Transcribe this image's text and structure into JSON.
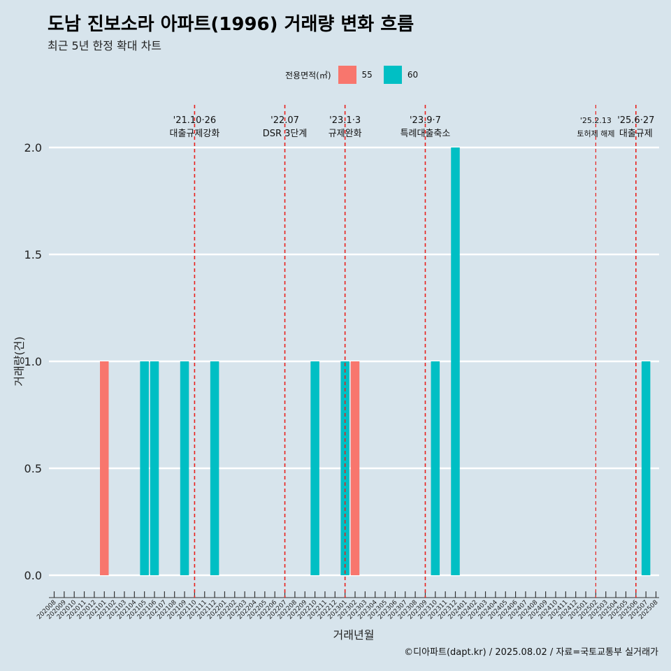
{
  "title": "도남 진보소라 아파트(1996) 거래량 변화 흐름",
  "subtitle": "최근 5년 한정 확대 차트",
  "legend": {
    "title": "전용면적(㎡)",
    "items": [
      {
        "label": "55",
        "color": "#f8766d"
      },
      {
        "label": "60",
        "color": "#00bfc4"
      }
    ]
  },
  "footer": "©디아파트(dapt.kr) / 2025.08.02 / 자료=국토교통부 실거래가",
  "chart_data": {
    "type": "bar",
    "xlabel": "거래년월",
    "ylabel": "거래량(건)",
    "ylim": [
      0,
      2.0
    ],
    "yticks": [
      "0.0",
      "0.5",
      "1.0",
      "1.5",
      "2.0"
    ],
    "categories": [
      "202008",
      "202009",
      "202010",
      "202011",
      "202012",
      "202101",
      "202102",
      "202103",
      "202104",
      "202105",
      "202106",
      "202107",
      "202108",
      "202109",
      "202110",
      "202111",
      "202112",
      "202201",
      "202202",
      "202203",
      "202204",
      "202205",
      "202206",
      "202207",
      "202208",
      "202209",
      "202210",
      "202211",
      "202212",
      "202301",
      "202302",
      "202303",
      "202304",
      "202305",
      "202306",
      "202307",
      "202308",
      "202309",
      "202310",
      "202311",
      "202312",
      "202401",
      "202402",
      "202403",
      "202404",
      "202405",
      "202406",
      "202407",
      "202408",
      "202409",
      "202410",
      "202411",
      "202412",
      "202501",
      "202502",
      "202503",
      "202504",
      "202505",
      "202506",
      "202507",
      "202508"
    ],
    "series": [
      {
        "name": "55",
        "color": "#f8766d",
        "points": [
          {
            "x": "202101",
            "y": 1
          },
          {
            "x": "202302",
            "y": 1
          }
        ]
      },
      {
        "name": "60",
        "color": "#00bfc4",
        "points": [
          {
            "x": "202105",
            "y": 1
          },
          {
            "x": "202106",
            "y": 1
          },
          {
            "x": "202109",
            "y": 1
          },
          {
            "x": "202112",
            "y": 1
          },
          {
            "x": "202210",
            "y": 1
          },
          {
            "x": "202301",
            "y": 1
          },
          {
            "x": "202310",
            "y": 1
          },
          {
            "x": "202312",
            "y": 2
          },
          {
            "x": "202507",
            "y": 1
          }
        ]
      }
    ],
    "annotations": [
      {
        "x": "202110",
        "date": "'21.10·26",
        "label": "대출규제강화",
        "small": false
      },
      {
        "x": "202207",
        "date": "'22.07",
        "label": "DSR 3단계",
        "small": false
      },
      {
        "x": "202301",
        "date": "'23.1·3",
        "label": "규제완화",
        "small": false
      },
      {
        "x": "202309",
        "date": "'23.9·7",
        "label": "특례대출축소",
        "small": false
      },
      {
        "x": "202502",
        "date": "'25.2.13",
        "label": "토허제 해제",
        "small": true
      },
      {
        "x": "202506",
        "date": "'25.6·27",
        "label": "대출규제",
        "small": false
      }
    ],
    "grid": true,
    "legend_position": "top"
  }
}
